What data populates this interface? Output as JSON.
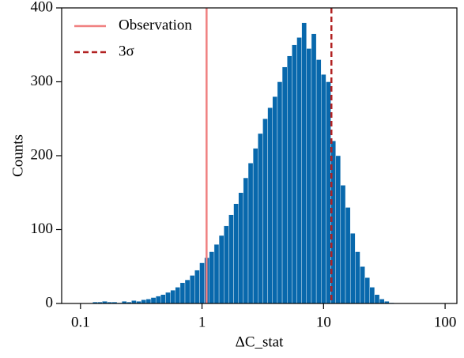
{
  "chart_data": {
    "type": "histogram",
    "xlabel": "ΔC_stat",
    "ylabel": "Counts",
    "xscale": "log",
    "xlim": [
      0.07,
      125
    ],
    "ylim": [
      0,
      400
    ],
    "xticks": [
      0.1,
      1,
      10,
      100
    ],
    "yticks": [
      0,
      100,
      200,
      300,
      400
    ],
    "color": "#0868ac",
    "legend": "upper left",
    "bins": [
      0.126,
      0.138,
      0.151,
      0.166,
      0.182,
      0.2,
      0.219,
      0.24,
      0.263,
      0.288,
      0.316,
      0.347,
      0.38,
      0.417,
      0.457,
      0.501,
      0.55,
      0.603,
      0.661,
      0.724,
      0.794,
      0.871,
      0.955,
      1.047,
      1.148,
      1.259,
      1.38,
      1.514,
      1.66,
      1.82,
      1.995,
      2.188,
      2.399,
      2.63,
      2.884,
      3.162,
      3.467,
      3.802,
      4.169,
      4.571,
      5.012,
      5.495,
      6.026,
      6.607,
      7.244,
      7.943,
      8.71,
      9.55,
      10.47,
      11.48,
      12.59,
      13.8,
      15.14,
      16.6,
      18.2,
      19.95,
      21.88,
      23.99,
      26.3,
      28.84,
      31.62,
      34.67,
      38.02
    ],
    "values": [
      2,
      2,
      3,
      2,
      2,
      1,
      3,
      2,
      4,
      3,
      5,
      6,
      8,
      10,
      12,
      15,
      18,
      22,
      28,
      32,
      38,
      45,
      55,
      62,
      70,
      80,
      92,
      105,
      120,
      135,
      150,
      170,
      190,
      210,
      230,
      250,
      265,
      280,
      300,
      320,
      335,
      350,
      360,
      380,
      345,
      365,
      330,
      310,
      300,
      220,
      200,
      160,
      130,
      95,
      70,
      50,
      35,
      22,
      12,
      6,
      3,
      1
    ],
    "vlines": [
      {
        "name": "Observation",
        "x": 1.09,
        "color": "#f08080",
        "style": "solid"
      },
      {
        "name": "3σ",
        "x": 11.6,
        "color": "#b22222",
        "style": "dashed"
      }
    ]
  }
}
